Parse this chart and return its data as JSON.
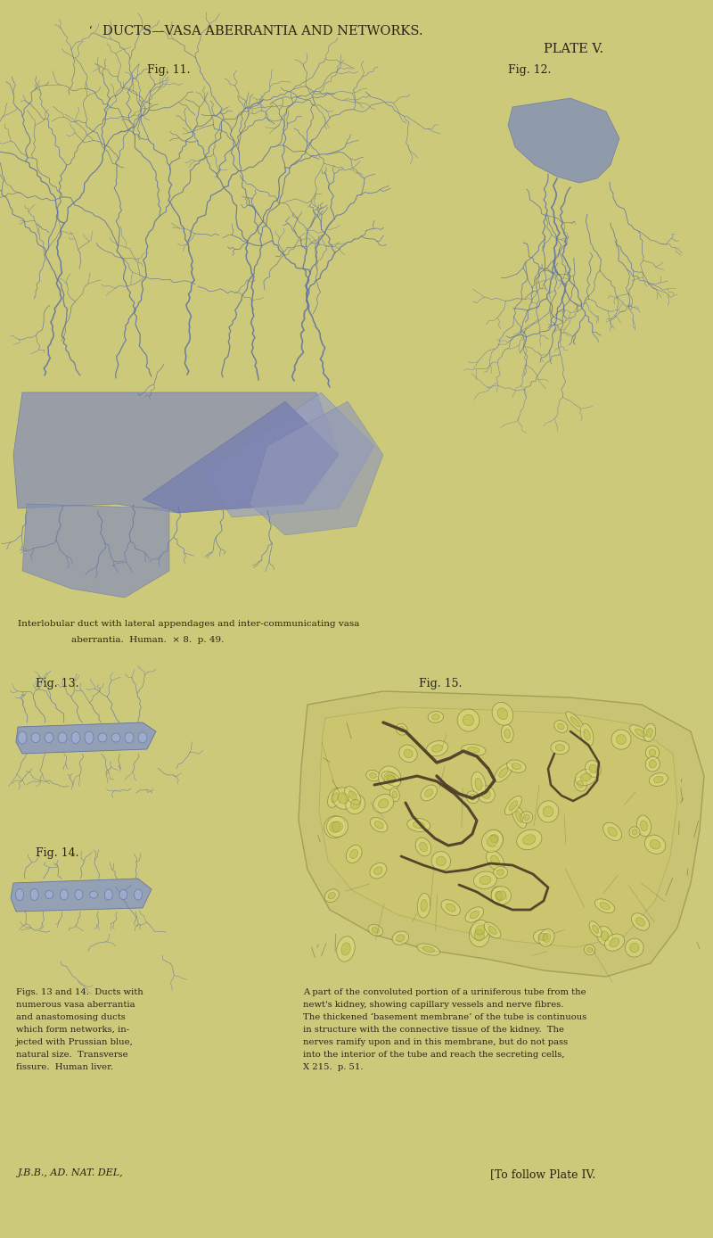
{
  "bg": "#ccc97a",
  "tc": "#2a2510",
  "dc": "#7888aa",
  "dc2": "#6070a0",
  "dc3": "#9090b0",
  "title": "DUCTS—VASA ABERRANTIA AND NETWORKS.",
  "plate": "PLATE V.",
  "fig11_label": "Fig. 11.",
  "fig12_label": "Fig. 12.",
  "fig13_label": "Fig. 13.",
  "fig14_label": "Fig. 14.",
  "fig15_label": "Fig. 15.",
  "cap1a": "Interlobular duct with lateral appendages and inter-communicating vasa",
  "cap1b": "aberrantia.  Human.  × 8.  p. 49.",
  "cap2": "Figs. 13 and 14.  Ducts with\nnumerous vasa aberrantia\nand anastomosing ducts\nwhich form networks, in-\njected with Prussian blue,\nnatural size.  Transverse\nfissure.  Human liver.",
  "cap3a": "A part of the convoluted portion of a uriniferous tube from the",
  "cap3b": "newt's kidney, showing capillary vessels and nerve fibres.",
  "cap3c": "The thickened ‘basement membrane’ of the tube is continuous",
  "cap3d": "in structure with the connective tissue of the kidney.  The",
  "cap3e": "nerves ramify upon and in this membrane, but do not pass",
  "cap3f": "into the interior of the tube and reach the secreting cells,",
  "cap3g": "X 215.  p. 51.",
  "cap4": "J.B.B., AD. NAT. DEL,",
  "cap5": "[To follow Plate IV."
}
